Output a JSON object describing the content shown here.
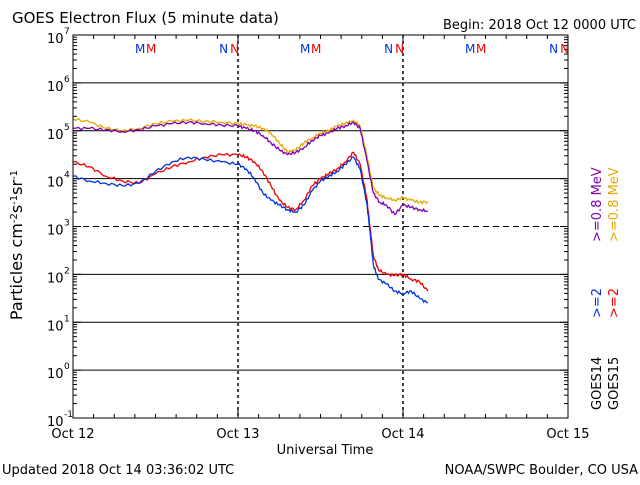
{
  "header": {
    "title": "GOES Electron Flux (5 minute data)",
    "begin": "Begin: 2018 Oct 12 0000 UTC"
  },
  "footer": {
    "updated": "Updated 2018 Oct 14 03:36:02 UTC",
    "source": "NOAA/SWPC Boulder, CO USA"
  },
  "colors": {
    "goes14_08": "#7f00b2",
    "goes15_08": "#e6a800",
    "goes14_2": "#0033dd",
    "goes15_2": "#ee0000",
    "marker_m": "#0033dd",
    "marker_n": "#0033dd"
  },
  "chart_data": {
    "type": "line",
    "xlabel": "Universal Time",
    "ylabel_parts": [
      "Particles cm",
      "-2",
      "s",
      "-1",
      "sr",
      "-1"
    ],
    "x_unit": "days since 2018 Oct 12 0000 UTC",
    "xlim": [
      0,
      3
    ],
    "y_scale": "log",
    "ylim_exp": [
      -1,
      7
    ],
    "x_ticks": [
      {
        "value": 0,
        "label": "Oct 12"
      },
      {
        "value": 1,
        "label": "Oct 13"
      },
      {
        "value": 2,
        "label": "Oct 14"
      },
      {
        "value": 3,
        "label": "Oct 15"
      }
    ],
    "y_ticks": [
      {
        "exp": -1,
        "base": "10",
        "power": "-1"
      },
      {
        "exp": 0,
        "base": "10",
        "power": "0"
      },
      {
        "exp": 1,
        "base": "10",
        "power": "1"
      },
      {
        "exp": 2,
        "base": "10",
        "power": "2"
      },
      {
        "exp": 3,
        "base": "10",
        "power": "3"
      },
      {
        "exp": 4,
        "base": "10",
        "power": "4"
      },
      {
        "exp": 5,
        "base": "10",
        "power": "5"
      },
      {
        "exp": 6,
        "base": "10",
        "power": "6"
      },
      {
        "exp": 7,
        "base": "10",
        "power": "7"
      }
    ],
    "dashed_threshold_exp": 3,
    "markers": [
      {
        "x": 0.43,
        "labels": [
          {
            "text": "M",
            "series": "goes14"
          },
          {
            "text": "M",
            "series": "goes15"
          }
        ]
      },
      {
        "x": 0.94,
        "labels": [
          {
            "text": "N",
            "series": "goes14"
          },
          {
            "text": "N",
            "series": "goes15"
          }
        ]
      },
      {
        "x": 1.43,
        "labels": [
          {
            "text": "M",
            "series": "goes14"
          },
          {
            "text": "M",
            "series": "goes15"
          }
        ]
      },
      {
        "x": 1.94,
        "labels": [
          {
            "text": "N",
            "series": "goes14"
          },
          {
            "text": "N",
            "series": "goes15"
          }
        ]
      },
      {
        "x": 2.43,
        "labels": [
          {
            "text": "M",
            "series": "goes14"
          },
          {
            "text": "M",
            "series": "goes15"
          }
        ]
      },
      {
        "x": 2.94,
        "labels": [
          {
            "text": "N",
            "series": "goes14"
          },
          {
            "text": "N",
            "series": "goes15"
          }
        ]
      }
    ],
    "legend": [
      {
        "sat": "GOES14",
        "energies": [
          {
            "text": ">=2",
            "color_key": "goes14_2"
          },
          {
            "text": ">=0.8 MeV",
            "color_key": "goes14_08"
          }
        ]
      },
      {
        "sat": "GOES15",
        "energies": [
          {
            "text": ">=2",
            "color_key": "goes15_2"
          },
          {
            "text": ">=0.8 MeV",
            "color_key": "goes15_08"
          }
        ]
      }
    ],
    "series": [
      {
        "name": "GOES15 >=0.8 MeV",
        "color_key": "goes15_08",
        "x": [
          0,
          0.1,
          0.2,
          0.3,
          0.4,
          0.5,
          0.6,
          0.7,
          0.8,
          0.9,
          1.0,
          1.05,
          1.1,
          1.15,
          1.2,
          1.25,
          1.3,
          1.35,
          1.4,
          1.45,
          1.5,
          1.55,
          1.6,
          1.65,
          1.7,
          1.74,
          1.78,
          1.82,
          1.86,
          1.9,
          1.95,
          2.0,
          2.05,
          2.1,
          2.15
        ],
        "y_exp": [
          5.25,
          5.18,
          5.05,
          5.0,
          5.05,
          5.15,
          5.2,
          5.22,
          5.2,
          5.18,
          5.15,
          5.12,
          5.1,
          5.05,
          4.95,
          4.75,
          4.55,
          4.6,
          4.75,
          4.85,
          4.95,
          5.0,
          5.1,
          5.15,
          5.22,
          5.1,
          4.5,
          3.8,
          3.65,
          3.6,
          3.55,
          3.6,
          3.55,
          3.5,
          3.52
        ]
      },
      {
        "name": "GOES14 >=0.8 MeV",
        "color_key": "goes14_08",
        "x": [
          0,
          0.1,
          0.2,
          0.3,
          0.4,
          0.5,
          0.6,
          0.7,
          0.8,
          0.9,
          1.0,
          1.05,
          1.1,
          1.15,
          1.2,
          1.25,
          1.3,
          1.35,
          1.4,
          1.45,
          1.5,
          1.55,
          1.6,
          1.65,
          1.7,
          1.74,
          1.78,
          1.82,
          1.86,
          1.9,
          1.95,
          2.0,
          2.05,
          2.1,
          2.15
        ],
        "y_exp": [
          5.05,
          5.05,
          5.02,
          4.98,
          5.02,
          5.1,
          5.15,
          5.18,
          5.15,
          5.12,
          5.1,
          5.05,
          5.0,
          4.9,
          4.75,
          4.6,
          4.5,
          4.55,
          4.65,
          4.8,
          4.9,
          4.95,
          5.05,
          5.1,
          5.18,
          5.05,
          4.4,
          3.7,
          3.5,
          3.45,
          3.25,
          3.45,
          3.4,
          3.35,
          3.32
        ]
      },
      {
        "name": "GOES15 >=2 MeV",
        "color_key": "goes15_2",
        "x": [
          0,
          0.1,
          0.2,
          0.3,
          0.4,
          0.5,
          0.6,
          0.7,
          0.8,
          0.9,
          1.0,
          1.05,
          1.1,
          1.15,
          1.2,
          1.25,
          1.3,
          1.35,
          1.4,
          1.45,
          1.5,
          1.55,
          1.6,
          1.65,
          1.7,
          1.74,
          1.78,
          1.8,
          1.82,
          1.85,
          1.9,
          1.95,
          2.0,
          2.05,
          2.1,
          2.15
        ],
        "y_exp": [
          4.35,
          4.25,
          4.05,
          3.95,
          3.9,
          4.1,
          4.25,
          4.35,
          4.45,
          4.5,
          4.5,
          4.45,
          4.35,
          4.15,
          3.85,
          3.55,
          3.4,
          3.35,
          3.55,
          3.85,
          4.0,
          4.1,
          4.2,
          4.35,
          4.55,
          4.3,
          3.6,
          3.0,
          2.4,
          2.1,
          2.0,
          1.98,
          2.0,
          1.9,
          1.85,
          1.65
        ]
      },
      {
        "name": "GOES14 >=2 MeV",
        "color_key": "goes14_2",
        "x": [
          0,
          0.1,
          0.2,
          0.3,
          0.4,
          0.5,
          0.6,
          0.7,
          0.8,
          0.9,
          1.0,
          1.05,
          1.1,
          1.15,
          1.2,
          1.25,
          1.3,
          1.35,
          1.4,
          1.45,
          1.5,
          1.55,
          1.6,
          1.65,
          1.7,
          1.74,
          1.78,
          1.8,
          1.82,
          1.85,
          1.9,
          1.95,
          2.0,
          2.05,
          2.1,
          2.15
        ],
        "y_exp": [
          4.05,
          3.95,
          3.9,
          3.85,
          3.9,
          4.15,
          4.35,
          4.45,
          4.4,
          4.35,
          4.3,
          4.2,
          4.0,
          3.7,
          3.55,
          3.45,
          3.35,
          3.3,
          3.45,
          3.75,
          3.95,
          4.05,
          4.15,
          4.3,
          4.45,
          4.2,
          3.5,
          2.9,
          2.2,
          1.9,
          1.8,
          1.65,
          1.6,
          1.65,
          1.5,
          1.4
        ]
      }
    ]
  }
}
